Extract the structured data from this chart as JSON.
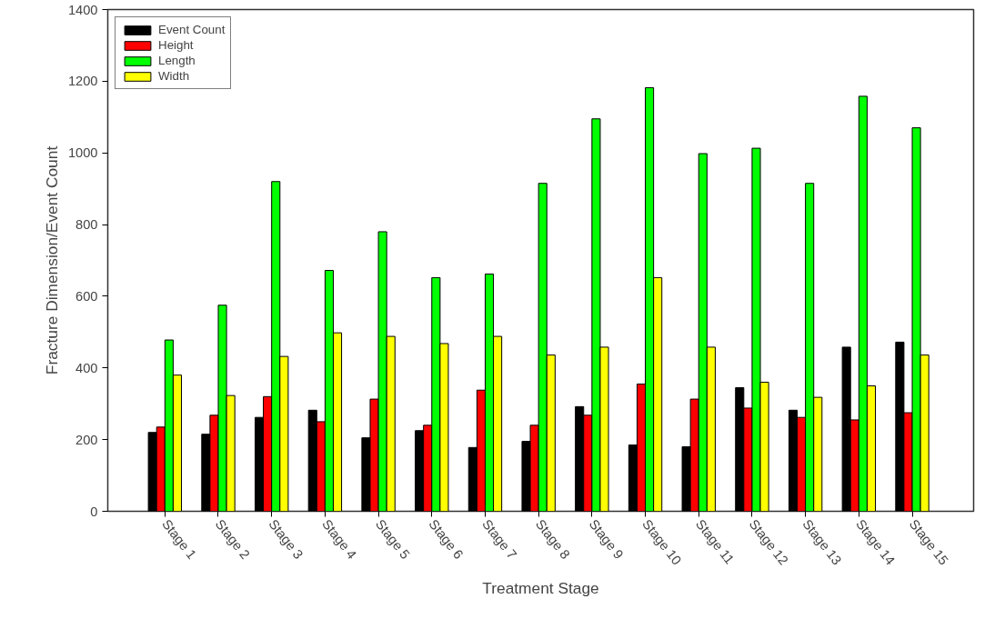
{
  "chart_data": {
    "type": "bar",
    "xlabel": "Treatment Stage",
    "ylabel": "Fracture Dimension/Event Count",
    "categories": [
      "Stage 1",
      "Stage 2",
      "Stage 3",
      "Stage 4",
      "Stage 5",
      "Stage 6",
      "Stage 7",
      "Stage 8",
      "Stage 9",
      "Stage 10",
      "Stage 11",
      "Stage 12",
      "Stage 13",
      "Stage 14",
      "Stage 15"
    ],
    "series": [
      {
        "name": "Event Count",
        "color": "#000000",
        "values": [
          220,
          215,
          262,
          282,
          205,
          225,
          178,
          195,
          292,
          185,
          180,
          345,
          282,
          458,
          472
        ]
      },
      {
        "name": "Height",
        "color": "#ff0000",
        "values": [
          235,
          268,
          320,
          250,
          313,
          240,
          338,
          240,
          268,
          355,
          313,
          288,
          262,
          255,
          275
        ]
      },
      {
        "name": "Length",
        "color": "#00ff00",
        "values": [
          478,
          575,
          920,
          672,
          780,
          652,
          662,
          915,
          1095,
          1182,
          998,
          1013,
          915,
          1158,
          1070
        ]
      },
      {
        "name": "Width",
        "color": "#ffff00",
        "values": [
          380,
          323,
          432,
          498,
          488,
          468,
          488,
          436,
          458,
          652,
          458,
          360,
          318,
          350,
          436
        ]
      }
    ],
    "ylim": [
      0,
      1400
    ],
    "yticks": [
      0,
      200,
      400,
      600,
      800,
      1000,
      1200,
      1400
    ],
    "legend": "top left"
  }
}
